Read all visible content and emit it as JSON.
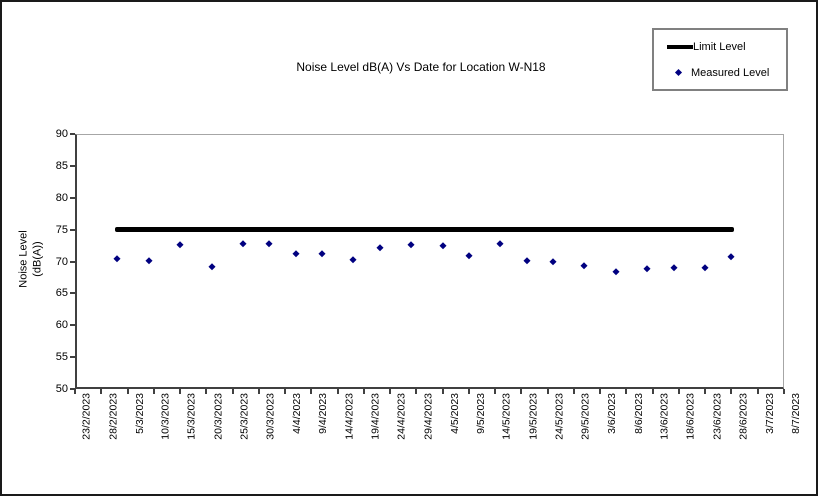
{
  "figure_title": "Noise Level dB(A) Vs Date for Location W-N18",
  "legend": {
    "items": [
      {
        "label": "Limit Level",
        "marker": "line",
        "color": "#000000"
      },
      {
        "label": "Measured Level",
        "marker": "diamond",
        "color": "#000080"
      }
    ]
  },
  "chart_data": {
    "type": "scatter",
    "title": "Noise Level dB(A) Vs Date for Location W-N18",
    "xlabel": "",
    "ylabel": "Noise Level (dB(A))",
    "ylabel_lines": [
      "Noise Level",
      "(dB(A))"
    ],
    "grid": false,
    "legend_position": "top-right",
    "y_axis": {
      "min": 50,
      "max": 90,
      "step": 5,
      "ticks": [
        90,
        85,
        80,
        75,
        70,
        65,
        60,
        55,
        50
      ]
    },
    "x_axis": {
      "start": "23/2/2023",
      "end": "8/7/2023",
      "tick_labels": [
        "23/2/2023",
        "28/2/2023",
        "5/3/2023",
        "10/3/2023",
        "15/3/2023",
        "20/3/2023",
        "25/3/2023",
        "30/3/2023",
        "4/4/2023",
        "9/4/2023",
        "14/4/2023",
        "19/4/2023",
        "24/4/2023",
        "29/4/2023",
        "4/5/2023",
        "9/5/2023",
        "14/5/2023",
        "19/5/2023",
        "24/5/2023",
        "29/5/2023",
        "3/6/2023",
        "8/6/2023",
        "13/6/2023",
        "18/6/2023",
        "23/6/2023",
        "28/6/2023",
        "3/7/2023",
        "8/7/2023"
      ]
    },
    "series": [
      {
        "name": "Limit Level",
        "type": "line",
        "color": "#000000",
        "value": 75,
        "x_start": "3/3/2023",
        "x_end": "28/6/2023"
      },
      {
        "name": "Measured Level",
        "type": "scatter",
        "color": "#000080",
        "points": [
          {
            "x": "3/3/2023",
            "y": 70.4
          },
          {
            "x": "9/3/2023",
            "y": 70.1
          },
          {
            "x": "15/3/2023",
            "y": 72.6
          },
          {
            "x": "21/3/2023",
            "y": 69.2
          },
          {
            "x": "27/3/2023",
            "y": 72.7
          },
          {
            "x": "1/4/2023",
            "y": 72.7
          },
          {
            "x": "6/4/2023",
            "y": 71.1
          },
          {
            "x": "11/4/2023",
            "y": 71.2
          },
          {
            "x": "17/4/2023",
            "y": 70.2
          },
          {
            "x": "22/4/2023",
            "y": 72.1
          },
          {
            "x": "28/4/2023",
            "y": 72.6
          },
          {
            "x": "4/5/2023",
            "y": 72.5
          },
          {
            "x": "9/5/2023",
            "y": 70.9
          },
          {
            "x": "15/5/2023",
            "y": 72.7
          },
          {
            "x": "20/5/2023",
            "y": 70.1
          },
          {
            "x": "25/5/2023",
            "y": 70.0
          },
          {
            "x": "31/5/2023",
            "y": 69.3
          },
          {
            "x": "6/6/2023",
            "y": 68.3
          },
          {
            "x": "12/6/2023",
            "y": 68.9
          },
          {
            "x": "17/6/2023",
            "y": 69.0
          },
          {
            "x": "23/6/2023",
            "y": 69.0
          },
          {
            "x": "28/6/2023",
            "y": 70.7
          }
        ]
      }
    ]
  },
  "colors": {
    "axis": "#404040",
    "plot_border": "#a6a6a6",
    "figure_border": "#1a1a1a",
    "limit_line": "#000000",
    "marker": "#000080"
  }
}
